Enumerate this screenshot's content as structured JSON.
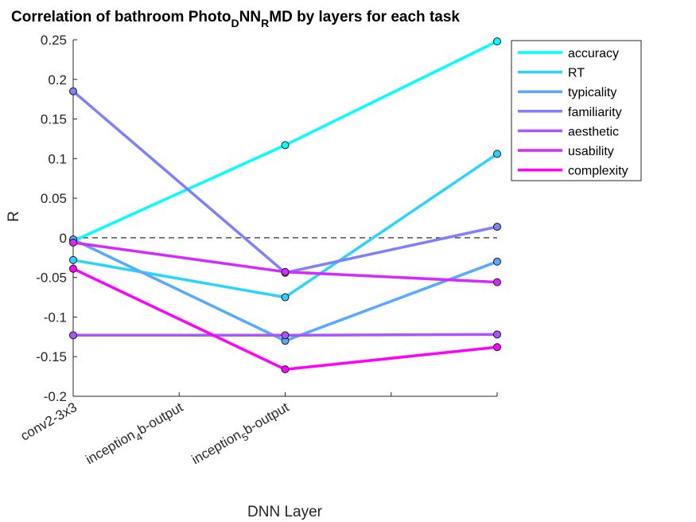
{
  "chart_data": {
    "type": "line",
    "title": {
      "segments": [
        {
          "text": "Correlation of bathroom Photo",
          "sub": false
        },
        {
          "text": "D",
          "sub": true
        },
        {
          "text": "NN",
          "sub": false
        },
        {
          "text": "R",
          "sub": true
        },
        {
          "text": "MD by layers for each task",
          "sub": false
        }
      ]
    },
    "xlabel": "DNN Layer",
    "ylabel": "R",
    "x_ticks": [
      1,
      2,
      3,
      4,
      5
    ],
    "x_tick_labels": [
      {
        "segments": [
          {
            "text": "conv2-3x3",
            "sub": false
          }
        ]
      },
      {
        "segments": [
          {
            "text": "inception",
            "sub": false
          },
          {
            "text": "4",
            "sub": true
          },
          {
            "text": "b-output",
            "sub": false
          }
        ]
      },
      {
        "segments": [
          {
            "text": "inception",
            "sub": false
          },
          {
            "text": "5",
            "sub": true
          },
          {
            "text": "b-output",
            "sub": false
          }
        ]
      },
      {
        "segments": []
      },
      {
        "segments": []
      }
    ],
    "xlim": [
      1,
      5
    ],
    "ylim": [
      -0.2,
      0.25
    ],
    "y_ticks": [
      -0.2,
      -0.15,
      -0.1,
      -0.05,
      0,
      0.05,
      0.1,
      0.15,
      0.2,
      0.25
    ],
    "y_tick_labels": [
      "-0.2",
      "-0.15",
      "-0.1",
      "-0.05",
      "0",
      "0.05",
      "0.1",
      "0.15",
      "0.2",
      "0.25"
    ],
    "reference_line": {
      "y": 0,
      "style": "dashed",
      "color": "#000000"
    },
    "grid": false,
    "legend_position": "top-right",
    "x": [
      1,
      3,
      5
    ],
    "series": [
      {
        "name": "accuracy",
        "color": "#00FFFF",
        "values": [
          -0.004,
          0.117,
          0.248
        ]
      },
      {
        "name": "RT",
        "color": "#2AD4FF",
        "values": [
          -0.028,
          -0.075,
          0.106
        ]
      },
      {
        "name": "typicality",
        "color": "#55AAFF",
        "values": [
          -0.002,
          -0.13,
          -0.03
        ]
      },
      {
        "name": "familiarity",
        "color": "#7F7FFF",
        "values": [
          0.185,
          -0.044,
          0.014
        ]
      },
      {
        "name": "aesthetic",
        "color": "#AA55FF",
        "values": [
          -0.123,
          -0.123,
          -0.122
        ]
      },
      {
        "name": "usability",
        "color": "#D42AFF",
        "values": [
          -0.006,
          -0.043,
          -0.056
        ]
      },
      {
        "name": "complexity",
        "color": "#FF00FF",
        "values": [
          -0.039,
          -0.166,
          -0.138
        ]
      }
    ]
  }
}
